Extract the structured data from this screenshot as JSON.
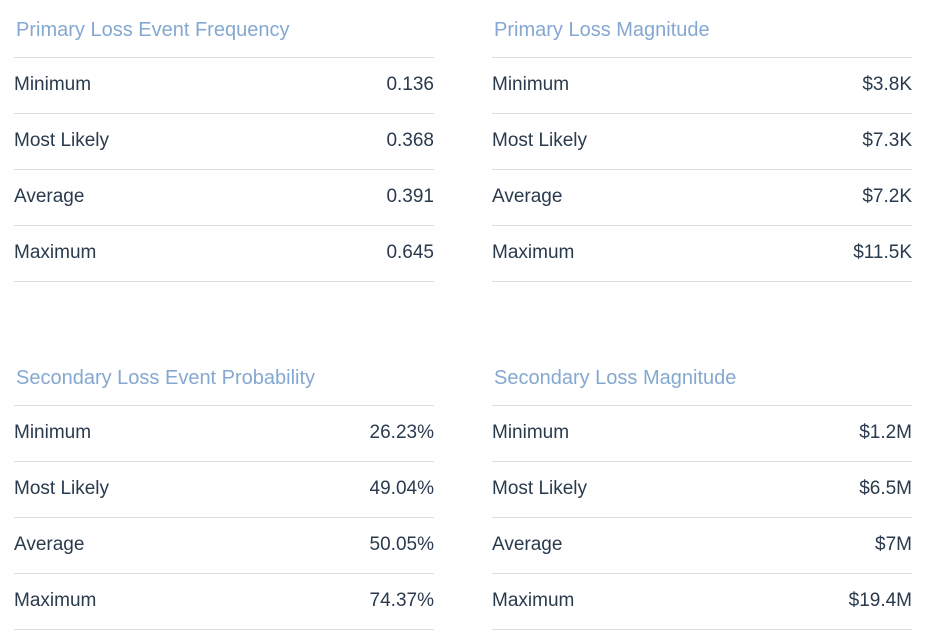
{
  "colors": {
    "panel_title": "#84a8d1",
    "stat_text": "#2a3a4d",
    "divider": "#dcdcdc",
    "background": "#ffffff"
  },
  "tables": [
    {
      "title": "Primary Loss Event Frequency",
      "rows": [
        {
          "label": "Minimum",
          "value": "0.136"
        },
        {
          "label": "Most Likely",
          "value": "0.368"
        },
        {
          "label": "Average",
          "value": "0.391"
        },
        {
          "label": "Maximum",
          "value": "0.645"
        }
      ]
    },
    {
      "title": "Primary Loss Magnitude",
      "rows": [
        {
          "label": "Minimum",
          "value": "$3.8K"
        },
        {
          "label": "Most Likely",
          "value": "$7.3K"
        },
        {
          "label": "Average",
          "value": "$7.2K"
        },
        {
          "label": "Maximum",
          "value": "$11.5K"
        }
      ]
    },
    {
      "title": "Secondary Loss Event Probability",
      "rows": [
        {
          "label": "Minimum",
          "value": "26.23%"
        },
        {
          "label": "Most Likely",
          "value": "49.04%"
        },
        {
          "label": "Average",
          "value": "50.05%"
        },
        {
          "label": "Maximum",
          "value": "74.37%"
        }
      ]
    },
    {
      "title": "Secondary Loss Magnitude",
      "rows": [
        {
          "label": "Minimum",
          "value": "$1.2M"
        },
        {
          "label": "Most Likely",
          "value": "$6.5M"
        },
        {
          "label": "Average",
          "value": "$7M"
        },
        {
          "label": "Maximum",
          "value": "$19.4M"
        }
      ]
    }
  ]
}
